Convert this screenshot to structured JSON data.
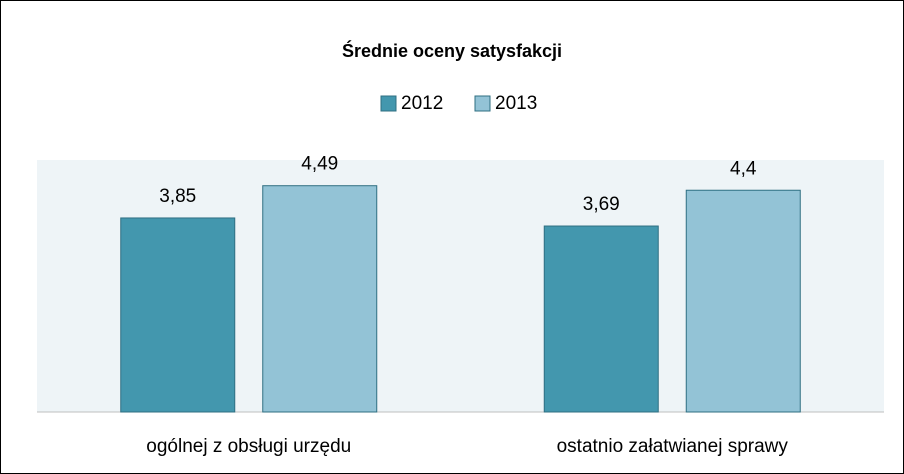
{
  "chart_data": {
    "type": "bar",
    "title": "Średnie oceny satysfakcji",
    "categories": [
      "ogólnej z obsługi urzędu",
      "ostatnio załatwianej sprawy"
    ],
    "series": [
      {
        "name": "2012",
        "color": "#4397ae",
        "values": [
          3.85,
          3.69
        ],
        "value_labels": [
          "3,85",
          "3,69"
        ]
      },
      {
        "name": "2013",
        "color": "#93c3d6",
        "values": [
          4.49,
          4.4
        ],
        "value_labels": [
          "4,49",
          "4,4"
        ]
      }
    ],
    "ylim": [
      0,
      5
    ],
    "legend": "top"
  }
}
